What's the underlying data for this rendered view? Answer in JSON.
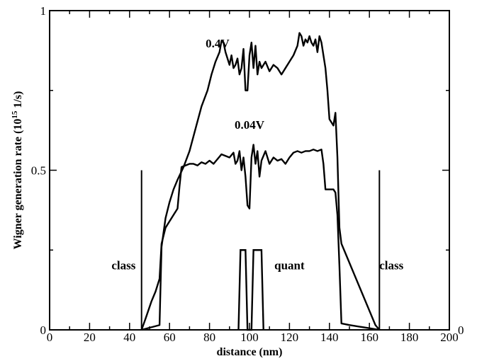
{
  "chart_data": {
    "type": "line",
    "title": "",
    "xlabel": "distance (nm)",
    "ylabel_parts": [
      "Wigner generation rate (10",
      "15",
      " 1/s)"
    ],
    "xlim": [
      0,
      200
    ],
    "ylim": [
      0,
      1
    ],
    "x_ticks": [
      0,
      20,
      40,
      60,
      80,
      100,
      120,
      140,
      160,
      180,
      200
    ],
    "x_tick_labels": [
      "0",
      "20",
      "40",
      "60",
      "80",
      "100",
      "120",
      "140",
      "160",
      "180",
      "200"
    ],
    "y_ticks": [
      0,
      0.5,
      1
    ],
    "y_tick_labels": [
      "0",
      "0.5",
      "1"
    ],
    "right_axis_label": "0",
    "series": [
      {
        "name": "0.4V",
        "label_pos": [
          84,
          0.885
        ],
        "points": [
          [
            46,
            0
          ],
          [
            55,
            0.015
          ],
          [
            56,
            0.26
          ],
          [
            58,
            0.35
          ],
          [
            60,
            0.4
          ],
          [
            62,
            0.44
          ],
          [
            64,
            0.47
          ],
          [
            67,
            0.51
          ],
          [
            70,
            0.56
          ],
          [
            73,
            0.63
          ],
          [
            76,
            0.7
          ],
          [
            79,
            0.75
          ],
          [
            81,
            0.8
          ],
          [
            83,
            0.84
          ],
          [
            85,
            0.87
          ],
          [
            86,
            0.905
          ],
          [
            87,
            0.9
          ],
          [
            88,
            0.87
          ],
          [
            89,
            0.85
          ],
          [
            90,
            0.83
          ],
          [
            91,
            0.86
          ],
          [
            92,
            0.82
          ],
          [
            93,
            0.83
          ],
          [
            94,
            0.85
          ],
          [
            95,
            0.8
          ],
          [
            96,
            0.82
          ],
          [
            97,
            0.88
          ],
          [
            98,
            0.75
          ],
          [
            99,
            0.75
          ],
          [
            100,
            0.86
          ],
          [
            101,
            0.9
          ],
          [
            102,
            0.82
          ],
          [
            103,
            0.89
          ],
          [
            104,
            0.8
          ],
          [
            105,
            0.84
          ],
          [
            106,
            0.82
          ],
          [
            108,
            0.84
          ],
          [
            110,
            0.81
          ],
          [
            112,
            0.83
          ],
          [
            114,
            0.82
          ],
          [
            116,
            0.8
          ],
          [
            118,
            0.82
          ],
          [
            120,
            0.84
          ],
          [
            122,
            0.86
          ],
          [
            124,
            0.89
          ],
          [
            125,
            0.93
          ],
          [
            126,
            0.92
          ],
          [
            127,
            0.89
          ],
          [
            128,
            0.91
          ],
          [
            129,
            0.9
          ],
          [
            130,
            0.92
          ],
          [
            131,
            0.9
          ],
          [
            132,
            0.89
          ],
          [
            133,
            0.91
          ],
          [
            134,
            0.87
          ],
          [
            135,
            0.92
          ],
          [
            136,
            0.9
          ],
          [
            137,
            0.86
          ],
          [
            138,
            0.82
          ],
          [
            139,
            0.75
          ],
          [
            140,
            0.66
          ],
          [
            141,
            0.65
          ],
          [
            142,
            0.64
          ],
          [
            143,
            0.68
          ],
          [
            144,
            0.54
          ],
          [
            145,
            0.32
          ],
          [
            146,
            0.27
          ],
          [
            148,
            0.24
          ],
          [
            152,
            0.18
          ],
          [
            156,
            0.12
          ],
          [
            160,
            0.06
          ],
          [
            163,
            0.015
          ],
          [
            165,
            0
          ]
        ]
      },
      {
        "name": "0.04V",
        "label_pos": [
          100,
          0.63
        ],
        "points": [
          [
            46,
            0
          ],
          [
            48,
            0.035
          ],
          [
            51,
            0.09
          ],
          [
            53,
            0.12
          ],
          [
            55,
            0.16
          ],
          [
            56,
            0.27
          ],
          [
            58,
            0.32
          ],
          [
            60,
            0.34
          ],
          [
            62,
            0.36
          ],
          [
            64,
            0.38
          ],
          [
            65,
            0.45
          ],
          [
            66,
            0.51
          ],
          [
            68,
            0.515
          ],
          [
            70,
            0.52
          ],
          [
            72,
            0.52
          ],
          [
            74,
            0.515
          ],
          [
            76,
            0.525
          ],
          [
            78,
            0.52
          ],
          [
            80,
            0.53
          ],
          [
            82,
            0.52
          ],
          [
            84,
            0.535
          ],
          [
            86,
            0.55
          ],
          [
            88,
            0.545
          ],
          [
            90,
            0.54
          ],
          [
            92,
            0.555
          ],
          [
            93,
            0.52
          ],
          [
            94,
            0.53
          ],
          [
            95,
            0.56
          ],
          [
            96,
            0.5
          ],
          [
            97,
            0.54
          ],
          [
            98,
            0.48
          ],
          [
            99,
            0.39
          ],
          [
            100,
            0.38
          ],
          [
            101,
            0.54
          ],
          [
            102,
            0.58
          ],
          [
            103,
            0.52
          ],
          [
            104,
            0.56
          ],
          [
            105,
            0.48
          ],
          [
            106,
            0.53
          ],
          [
            108,
            0.56
          ],
          [
            110,
            0.52
          ],
          [
            112,
            0.54
          ],
          [
            114,
            0.53
          ],
          [
            116,
            0.535
          ],
          [
            118,
            0.52
          ],
          [
            120,
            0.54
          ],
          [
            122,
            0.555
          ],
          [
            124,
            0.56
          ],
          [
            126,
            0.555
          ],
          [
            128,
            0.56
          ],
          [
            130,
            0.56
          ],
          [
            132,
            0.565
          ],
          [
            134,
            0.56
          ],
          [
            136,
            0.565
          ],
          [
            137,
            0.52
          ],
          [
            138,
            0.44
          ],
          [
            140,
            0.44
          ],
          [
            142,
            0.44
          ],
          [
            143,
            0.43
          ],
          [
            144,
            0.36
          ],
          [
            145,
            0.2
          ],
          [
            146,
            0.02
          ],
          [
            150,
            0.015
          ],
          [
            160,
            0.005
          ],
          [
            165,
            0
          ]
        ]
      }
    ],
    "barrier": {
      "points": [
        [
          94.5,
          0
        ],
        [
          95.5,
          0.25
        ],
        [
          98,
          0.25
        ],
        [
          99,
          0
        ],
        [
          101,
          0
        ],
        [
          102,
          0.25
        ],
        [
          106,
          0.25
        ],
        [
          107,
          0
        ]
      ]
    },
    "regions": [
      {
        "label": "class",
        "at": [
          37,
          0.19
        ]
      },
      {
        "label": "quant",
        "at": [
          120,
          0.19
        ]
      },
      {
        "label": "class",
        "at": [
          171,
          0.19
        ]
      }
    ],
    "dividers": [
      {
        "x": 46,
        "y_top": 0.5
      },
      {
        "x": 165,
        "y_top": 0.5
      }
    ]
  }
}
